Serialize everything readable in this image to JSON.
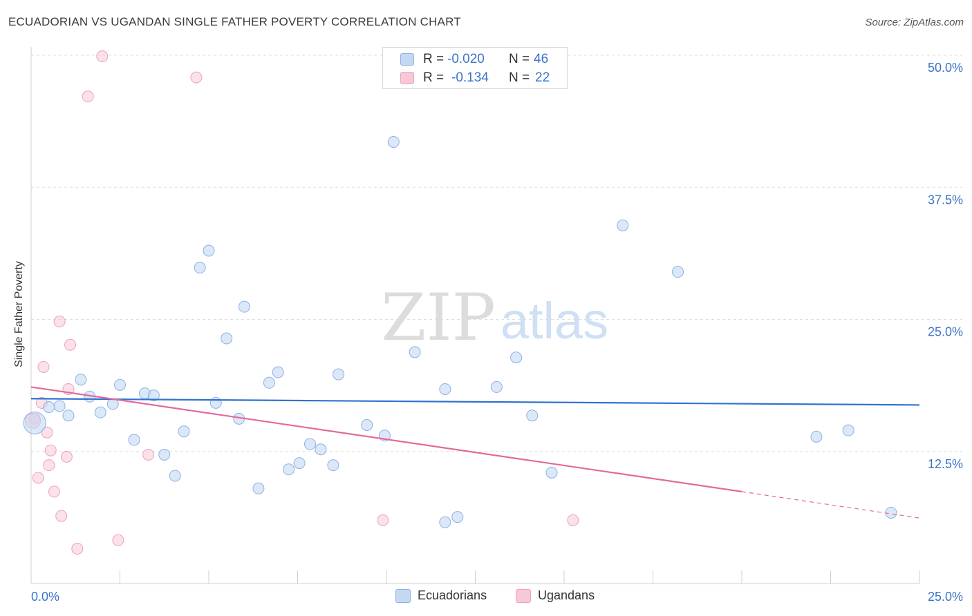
{
  "header": {
    "title": "ECUADORIAN VS UGANDAN SINGLE FATHER POVERTY CORRELATION CHART",
    "source": "Source: ZipAtlas.com"
  },
  "watermark": {
    "zip": "ZIP",
    "atlas": "atlas"
  },
  "legend": {
    "rows": [
      {
        "r_label": "R =",
        "r_value": "-0.020",
        "n_label": "N =",
        "n_value": "46"
      },
      {
        "r_label": "R =",
        "r_value": "-0.134",
        "n_label": "N =",
        "n_value": "22"
      }
    ]
  },
  "bottom_legend": {
    "ecuadorians": "Ecuadorians",
    "ugandans": "Ugandans"
  },
  "colors": {
    "ecuadorian_fill": "#c5d8f3",
    "ecuadorian_stroke": "#8bb0e6",
    "ecuadorian_line": "#2f73d1",
    "ugandan_fill": "#f7c9d8",
    "ugandan_stroke": "#eea0bb",
    "ugandan_line": "#e3699a",
    "axis_text": "#3a74c9"
  },
  "chart_data": {
    "type": "scatter",
    "title": "ECUADORIAN VS UGANDAN SINGLE FATHER POVERTY CORRELATION CHART",
    "xlabel": "",
    "ylabel": "Single Father Poverty",
    "xlim": [
      0,
      25
    ],
    "ylim": [
      0,
      50
    ],
    "x_tick_labels": [
      "0.0%",
      "25.0%"
    ],
    "y_ticks": [
      12.5,
      25.0,
      37.5,
      50.0
    ],
    "y_tick_labels": [
      "12.5%",
      "25.0%",
      "37.5%",
      "50.0%"
    ],
    "grid": true,
    "series": [
      {
        "name": "Ecuadorians",
        "r": -0.02,
        "n": 46,
        "trend": {
          "x": [
            0,
            25
          ],
          "y": [
            17.5,
            16.9
          ]
        },
        "points": [
          [
            0.1,
            15.2
          ],
          [
            0.5,
            16.7
          ],
          [
            0.8,
            16.8
          ],
          [
            1.05,
            15.9
          ],
          [
            1.4,
            19.3
          ],
          [
            1.65,
            17.7
          ],
          [
            1.95,
            16.2
          ],
          [
            2.3,
            17.0
          ],
          [
            2.5,
            18.8
          ],
          [
            2.9,
            13.6
          ],
          [
            3.2,
            18.0
          ],
          [
            3.45,
            17.8
          ],
          [
            3.75,
            12.2
          ],
          [
            4.05,
            10.2
          ],
          [
            4.3,
            14.4
          ],
          [
            4.75,
            29.9
          ],
          [
            5.0,
            31.5
          ],
          [
            5.2,
            17.1
          ],
          [
            5.5,
            23.2
          ],
          [
            5.85,
            15.6
          ],
          [
            6.0,
            26.2
          ],
          [
            6.4,
            9.0
          ],
          [
            6.7,
            19.0
          ],
          [
            6.95,
            20.0
          ],
          [
            7.25,
            10.8
          ],
          [
            7.55,
            11.4
          ],
          [
            7.85,
            13.2
          ],
          [
            8.15,
            12.7
          ],
          [
            8.5,
            11.2
          ],
          [
            8.65,
            19.8
          ],
          [
            9.45,
            15.0
          ],
          [
            9.95,
            14.0
          ],
          [
            10.2,
            41.8
          ],
          [
            10.8,
            21.9
          ],
          [
            11.65,
            5.8
          ],
          [
            11.65,
            18.4
          ],
          [
            12.0,
            6.3
          ],
          [
            13.1,
            18.6
          ],
          [
            13.65,
            21.4
          ],
          [
            14.1,
            15.9
          ],
          [
            14.65,
            10.5
          ],
          [
            16.65,
            33.9
          ],
          [
            18.2,
            29.5
          ],
          [
            22.1,
            13.9
          ],
          [
            23.0,
            14.5
          ],
          [
            24.2,
            6.7
          ]
        ]
      },
      {
        "name": "Ugandans",
        "r": -0.134,
        "n": 22,
        "trend": {
          "x": [
            0,
            20
          ],
          "y": [
            18.6,
            8.7
          ],
          "dashed_to": {
            "x": 25,
            "y": 6.2
          }
        },
        "points": [
          [
            0.1,
            15.6
          ],
          [
            0.3,
            17.1
          ],
          [
            0.35,
            20.5
          ],
          [
            0.2,
            10.0
          ],
          [
            0.45,
            14.3
          ],
          [
            0.5,
            11.2
          ],
          [
            0.55,
            12.6
          ],
          [
            0.65,
            8.7
          ],
          [
            0.8,
            24.8
          ],
          [
            0.85,
            6.4
          ],
          [
            1.0,
            12.0
          ],
          [
            1.05,
            18.4
          ],
          [
            1.1,
            22.6
          ],
          [
            1.3,
            3.3
          ],
          [
            1.6,
            46.1
          ],
          [
            2.0,
            49.9
          ],
          [
            2.45,
            4.1
          ],
          [
            3.3,
            12.2
          ],
          [
            4.65,
            47.9
          ],
          [
            9.9,
            6.0
          ],
          [
            15.25,
            6.0
          ],
          [
            0.05,
            15.4
          ]
        ]
      }
    ]
  }
}
